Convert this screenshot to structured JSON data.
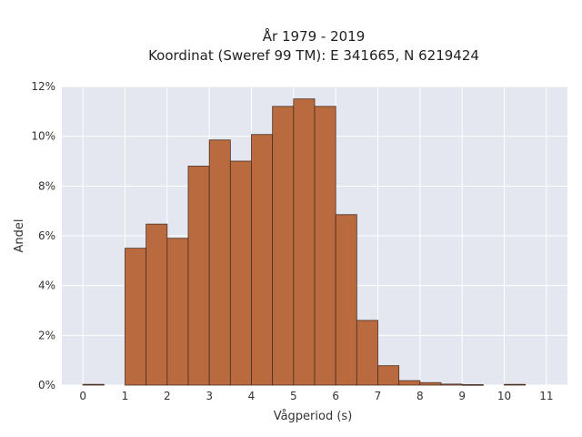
{
  "chart_data": {
    "type": "bar",
    "title_line1": "År 1979 - 2019",
    "title_line2": "Koordinat (Sweref 99 TM): E 341665, N 6219424",
    "xlabel": "Vågperiod (s)",
    "ylabel": "Andel",
    "xlim": [
      -0.5,
      11.5
    ],
    "ylim": [
      0,
      12
    ],
    "x_ticks": [
      0,
      1,
      2,
      3,
      4,
      5,
      6,
      7,
      8,
      9,
      10,
      11
    ],
    "y_ticks": [
      0,
      2,
      4,
      6,
      8,
      10,
      12
    ],
    "y_tick_labels": [
      "0%",
      "2%",
      "4%",
      "6%",
      "8%",
      "10%",
      "12%"
    ],
    "bin_width": 0.5,
    "bins": [
      {
        "start": 0.0,
        "value": 0.03
      },
      {
        "start": 0.5,
        "value": 0.0
      },
      {
        "start": 1.0,
        "value": 5.5
      },
      {
        "start": 1.5,
        "value": 6.47
      },
      {
        "start": 2.0,
        "value": 5.9
      },
      {
        "start": 2.5,
        "value": 8.8
      },
      {
        "start": 3.0,
        "value": 9.85
      },
      {
        "start": 3.5,
        "value": 9.0
      },
      {
        "start": 4.0,
        "value": 10.07
      },
      {
        "start": 4.5,
        "value": 11.2
      },
      {
        "start": 5.0,
        "value": 11.5
      },
      {
        "start": 5.5,
        "value": 11.2
      },
      {
        "start": 6.0,
        "value": 6.85
      },
      {
        "start": 6.5,
        "value": 2.6
      },
      {
        "start": 7.0,
        "value": 0.78
      },
      {
        "start": 7.5,
        "value": 0.18
      },
      {
        "start": 8.0,
        "value": 0.1
      },
      {
        "start": 8.5,
        "value": 0.04
      },
      {
        "start": 9.0,
        "value": 0.02
      },
      {
        "start": 9.5,
        "value": 0.0
      },
      {
        "start": 10.0,
        "value": 0.03
      }
    ],
    "grid": true,
    "colors": {
      "bar_fill": "#b96a3e",
      "bar_stroke": "#4a2f22",
      "plot_background": "#e5e7f0",
      "grid": "#ffffff"
    }
  }
}
